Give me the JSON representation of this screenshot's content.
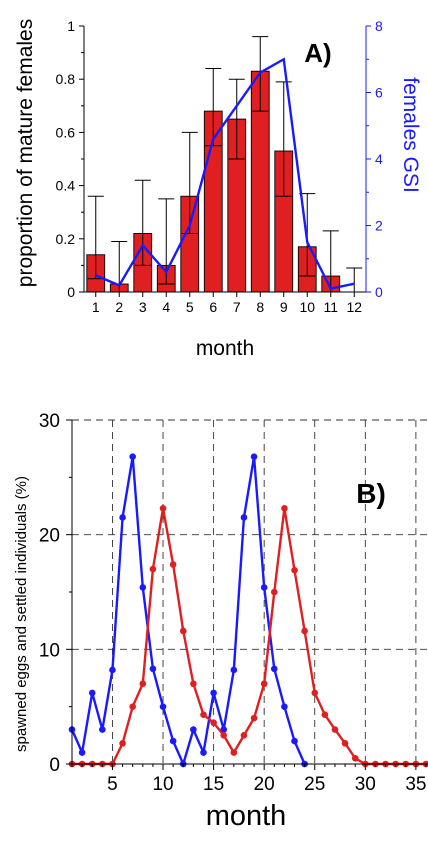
{
  "chart_data": [
    {
      "type": "bar",
      "panel_label": "A)",
      "xlabel": "month",
      "ylabel": "proportion of mature females",
      "ylabel_right": "females GSI",
      "categories": [
        "1",
        "2",
        "3",
        "4",
        "5",
        "6",
        "7",
        "8",
        "9",
        "10",
        "11",
        "12"
      ],
      "ylim": [
        0,
        1
      ],
      "yticks": [
        "0",
        "0.2",
        "0.4",
        "0.6",
        "0.8",
        "1"
      ],
      "ylim_right": [
        0,
        8
      ],
      "yticks_right": [
        "0",
        "2",
        "4",
        "6",
        "8"
      ],
      "series": [
        {
          "values": [
            0.14,
            0.03,
            0.22,
            0.1,
            0.36,
            0.68,
            0.65,
            0.83,
            0.53,
            0.17,
            0.06,
            0.0
          ],
          "err_low": [
            0.05,
            0.0,
            0.1,
            0.03,
            0.22,
            0.55,
            0.5,
            0.68,
            0.36,
            0.06,
            0.0,
            0.0
          ],
          "err_high": [
            0.36,
            0.19,
            0.42,
            0.35,
            0.6,
            0.84,
            0.8,
            0.96,
            0.79,
            0.37,
            0.23,
            0.09
          ],
          "color": "#e02020"
        },
        {
          "axis": "right",
          "x": [
            1,
            2,
            3,
            4,
            5,
            6,
            7,
            8,
            9,
            10,
            11,
            12
          ],
          "values": [
            0.5,
            0.2,
            1.4,
            0.6,
            2.0,
            4.6,
            5.6,
            6.6,
            7.0,
            1.5,
            0.1,
            0.25
          ],
          "color": "#1a1aff"
        }
      ]
    },
    {
      "type": "line",
      "panel_label": "B)",
      "xlabel": "month",
      "ylabel": "spawned eggs and settled individuals (%)",
      "xlim": [
        1,
        36
      ],
      "xticks": [
        "5",
        "10",
        "15",
        "20",
        "25",
        "30",
        "35"
      ],
      "ylim": [
        0,
        30
      ],
      "yticks": [
        "0",
        "10",
        "20",
        "30"
      ],
      "grid": true,
      "series": [
        {
          "color": "#1a1aff",
          "x": [
            1,
            2,
            3,
            4,
            5,
            6,
            7,
            8,
            9,
            10,
            11,
            12,
            13,
            14,
            15,
            16,
            17,
            18,
            19,
            20,
            21,
            22,
            23,
            24
          ],
          "values": [
            3.0,
            1.0,
            6.2,
            3.0,
            8.2,
            21.5,
            26.8,
            15.4,
            8.3,
            5.0,
            2.0,
            0.0,
            3.0,
            1.0,
            6.2,
            3.0,
            8.2,
            21.5,
            26.8,
            15.4,
            8.3,
            5.0,
            2.0,
            0.0
          ]
        },
        {
          "color": "#e02020",
          "x": [
            1,
            2,
            3,
            4,
            5,
            6,
            7,
            8,
            9,
            10,
            11,
            12,
            13,
            14,
            15,
            16,
            17,
            18,
            19,
            20,
            21,
            22,
            23,
            24,
            25,
            26,
            27,
            28,
            29,
            30,
            31,
            32,
            33,
            34,
            35,
            36
          ],
          "values": [
            0,
            0,
            0,
            0,
            0,
            1.8,
            5.0,
            7.0,
            17.0,
            22.3,
            17.4,
            11.6,
            7.0,
            4.3,
            3.6,
            2.5,
            1.0,
            2.5,
            4.0,
            7.0,
            15.0,
            22.3,
            16.9,
            11.6,
            6.2,
            4.3,
            3.0,
            1.8,
            0.5,
            0,
            0,
            0,
            0,
            0,
            0,
            0
          ]
        }
      ]
    }
  ]
}
